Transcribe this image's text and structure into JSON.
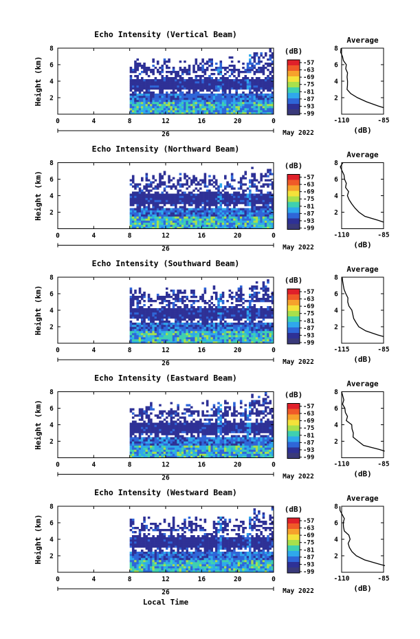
{
  "chart_data": {
    "type": "heatmap",
    "xlabel": "Local Time",
    "ylabel": "Height (km)",
    "date_label": "May 2022",
    "day_label": "26",
    "x_ticks": [
      "0",
      "4",
      "8",
      "12",
      "16",
      "20",
      "0"
    ],
    "y_ticks": [
      "2",
      "4",
      "6",
      "8"
    ],
    "xlim": [
      0,
      24
    ],
    "ylim": [
      0,
      8
    ],
    "data_start_hour": 8,
    "colorbar": {
      "unit": "(dB)",
      "labels": [
        "-57",
        "-63",
        "-69",
        "-75",
        "-81",
        "-87",
        "-93",
        "-99"
      ],
      "colors": [
        "#e0202a",
        "#f05a28",
        "#f6a22c",
        "#f4e23a",
        "#a8e04c",
        "#3fd0b0",
        "#2fa8ec",
        "#2f66d8",
        "#2e3196",
        "#3a3a7a"
      ]
    },
    "profile_title": "Average",
    "profile_xlabel": "(dB)",
    "profile_y_ticks": [
      "2",
      "4",
      "6",
      "8"
    ],
    "panels": [
      {
        "title": "Echo Intensity (Vertical Beam)",
        "profile_x_ticks": [
          "-110",
          "-85"
        ],
        "profile_xlim": [
          -110,
          -85
        ],
        "profile": {
          "height_km": [
            0.8,
            1.0,
            1.5,
            2.0,
            2.5,
            3.0,
            3.5,
            4.0,
            4.5,
            5.0,
            5.5,
            6.0,
            6.5,
            7.0,
            7.5,
            8.0
          ],
          "db": [
            -85,
            -88,
            -96,
            -101,
            -105,
            -107,
            -107.5,
            -107,
            -106.5,
            -107.5,
            -108,
            -108,
            -109,
            -109.5,
            -110,
            -110
          ]
        }
      },
      {
        "title": "Echo Intensity (Northward Beam)",
        "profile_x_ticks": [
          "-110",
          "-85"
        ],
        "profile_xlim": [
          -110,
          -85
        ],
        "profile": {
          "height_km": [
            0.8,
            1.0,
            1.5,
            2.0,
            2.5,
            3.0,
            3.5,
            4.0,
            4.5,
            5.0,
            5.5,
            6.0,
            6.5,
            7.0,
            7.5,
            8.0
          ],
          "db": [
            -85,
            -88,
            -96,
            -100,
            -103,
            -104,
            -105,
            -106,
            -106.5,
            -107.5,
            -108,
            -108.5,
            -109,
            -109.5,
            -110,
            -110
          ]
        }
      },
      {
        "title": "Echo Intensity (Southward Beam)",
        "profile_x_ticks": [
          "-115",
          "-85"
        ],
        "profile_xlim": [
          -115,
          -85
        ],
        "profile": {
          "height_km": [
            0.8,
            1.0,
            1.5,
            2.0,
            2.5,
            3.0,
            3.5,
            4.0,
            4.5,
            5.0,
            5.5,
            6.0,
            6.5,
            7.0,
            7.5,
            8.0
          ],
          "db": [
            -85,
            -89,
            -97,
            -102,
            -104,
            -106,
            -107,
            -108,
            -109,
            -110,
            -111,
            -112,
            -112.5,
            -113,
            -114,
            -114
          ]
        }
      },
      {
        "title": "Echo Intensity (Eastward Beam)",
        "profile_x_ticks": [
          "-110",
          "-85"
        ],
        "profile_xlim": [
          -110,
          -85
        ],
        "profile": {
          "height_km": [
            0.8,
            1.0,
            1.5,
            2.0,
            2.5,
            3.0,
            3.5,
            4.0,
            4.5,
            5.0,
            5.5,
            6.0,
            6.5,
            7.0,
            7.5,
            8.0
          ],
          "db": [
            -85,
            -88,
            -96,
            -100,
            -102.5,
            -103.5,
            -104,
            -105,
            -106.5,
            -107.5,
            -108,
            -108,
            -109,
            -109.5,
            -110,
            -110
          ]
        }
      },
      {
        "title": "Echo Intensity (Westward Beam)",
        "profile_x_ticks": [
          "-110",
          "-85"
        ],
        "profile_xlim": [
          -110,
          -85
        ],
        "profile": {
          "height_km": [
            0.8,
            1.0,
            1.5,
            2.0,
            2.5,
            3.0,
            3.5,
            4.0,
            4.5,
            5.0,
            5.5,
            6.0,
            6.5,
            7.0,
            7.5,
            8.0
          ],
          "db": [
            -85,
            -88,
            -96,
            -101,
            -104,
            -105,
            -105.5,
            -106,
            -106.5,
            -107.5,
            -108,
            -108.5,
            -109,
            -109.5,
            -110,
            -110
          ]
        }
      }
    ]
  }
}
